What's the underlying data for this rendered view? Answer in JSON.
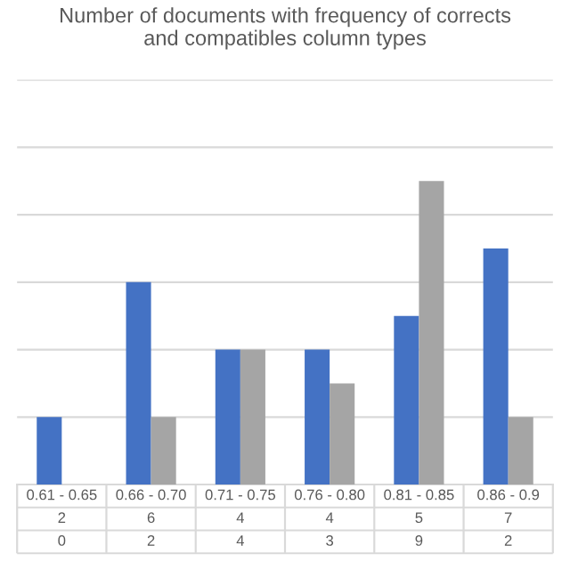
{
  "chart_data": {
    "type": "bar",
    "title": "Number of documents with frequency of corrects\nand compatibles column types",
    "categories": [
      "0.61 - 0.65",
      "0.66 - 0.70",
      "0.71 - 0.75",
      "0.76 - 0.80",
      "0.81 - 0.85",
      "0.86 - 0.9"
    ],
    "series": [
      {
        "color": "#4472c4",
        "values": [
          2,
          6,
          4,
          4,
          5,
          7
        ]
      },
      {
        "color": "#a5a5a5",
        "values": [
          0,
          2,
          4,
          3,
          9,
          2
        ]
      }
    ],
    "ylim": [
      0,
      12
    ],
    "yticks": [
      {
        "value": 0,
        "label": null
      },
      {
        "value": 2,
        "label": null
      },
      {
        "value": 4,
        "label": null
      },
      {
        "value": 6,
        "label": null
      },
      {
        "value": 8,
        "label": null
      },
      {
        "value": 10,
        "label": null
      },
      {
        "value": 12,
        "label": null
      }
    ],
    "grid": "y",
    "data_labels": true,
    "tick_labels": "x",
    "legend": false
  }
}
